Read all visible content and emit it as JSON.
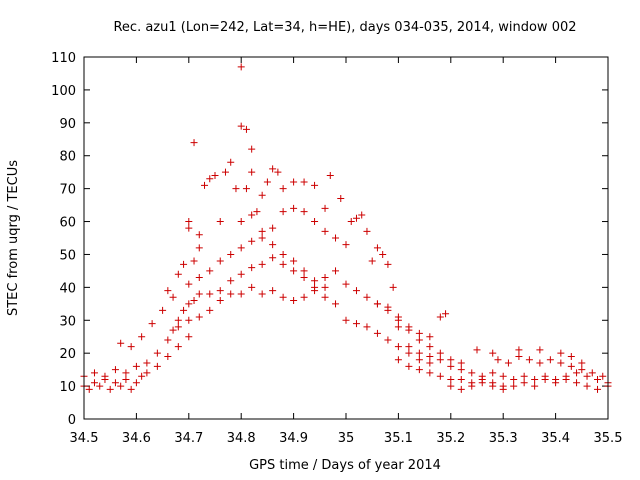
{
  "chart_data": {
    "type": "scatter",
    "title": "Rec. azu1 (Lon=242, Lat=34, h=HE), days 034-035, 2014, window 002",
    "xlabel": "GPS time / Days of year 2014",
    "ylabel": "STEC from uqrg / TECUs",
    "xlim": [
      34.5,
      35.5
    ],
    "ylim": [
      0,
      110
    ],
    "xticks": [
      34.5,
      34.6,
      34.7,
      34.8,
      34.9,
      35,
      35.1,
      35.2,
      35.3,
      35.4,
      35.5
    ],
    "xtick_labels": [
      "34.5",
      "34.6",
      "34.7",
      "34.8",
      "34.9",
      "35",
      "35.1",
      "35.2",
      "35.3",
      "35.4",
      "35.5"
    ],
    "yticks": [
      0,
      10,
      20,
      30,
      40,
      50,
      60,
      70,
      80,
      90,
      100,
      110
    ],
    "ytick_labels": [
      "0",
      "10",
      "20",
      "30",
      "40",
      "50",
      "60",
      "70",
      "80",
      "90",
      "100",
      "110"
    ],
    "marker": "+",
    "color": "#cc0000",
    "series": [
      {
        "name": "STEC",
        "points": [
          [
            34.5,
            10
          ],
          [
            34.51,
            9
          ],
          [
            34.52,
            11
          ],
          [
            34.53,
            10
          ],
          [
            34.54,
            12
          ],
          [
            34.55,
            9
          ],
          [
            34.56,
            11
          ],
          [
            34.57,
            10
          ],
          [
            34.58,
            12
          ],
          [
            34.59,
            9
          ],
          [
            34.6,
            11
          ],
          [
            34.61,
            13
          ],
          [
            34.5,
            13
          ],
          [
            34.52,
            14
          ],
          [
            34.54,
            13
          ],
          [
            34.56,
            15
          ],
          [
            34.58,
            14
          ],
          [
            34.6,
            16
          ],
          [
            34.62,
            17
          ],
          [
            34.57,
            23
          ],
          [
            34.59,
            22
          ],
          [
            34.61,
            25
          ],
          [
            34.63,
            29
          ],
          [
            34.65,
            33
          ],
          [
            34.66,
            39
          ],
          [
            34.62,
            14
          ],
          [
            34.64,
            16
          ],
          [
            34.66,
            19
          ],
          [
            34.68,
            22
          ],
          [
            34.7,
            25
          ],
          [
            34.64,
            20
          ],
          [
            34.66,
            24
          ],
          [
            34.67,
            27
          ],
          [
            34.68,
            30
          ],
          [
            34.69,
            33
          ],
          [
            34.7,
            35
          ],
          [
            34.71,
            36
          ],
          [
            34.72,
            38
          ],
          [
            34.67,
            37
          ],
          [
            34.68,
            44
          ],
          [
            34.69,
            47
          ],
          [
            34.7,
            58
          ],
          [
            34.7,
            60
          ],
          [
            34.71,
            48
          ],
          [
            34.72,
            52
          ],
          [
            34.68,
            28
          ],
          [
            34.7,
            30
          ],
          [
            34.72,
            31
          ],
          [
            34.74,
            33
          ],
          [
            34.76,
            36
          ],
          [
            34.78,
            38
          ],
          [
            34.8,
            38
          ],
          [
            34.71,
            84
          ],
          [
            34.72,
            56
          ],
          [
            34.73,
            71
          ],
          [
            34.74,
            73
          ],
          [
            34.75,
            74
          ],
          [
            34.76,
            60
          ],
          [
            34.77,
            75
          ],
          [
            34.78,
            78
          ],
          [
            34.79,
            70
          ],
          [
            34.8,
            107
          ],
          [
            34.8,
            89
          ],
          [
            34.81,
            88
          ],
          [
            34.81,
            70
          ],
          [
            34.82,
            75
          ],
          [
            34.82,
            82
          ],
          [
            34.83,
            63
          ],
          [
            34.84,
            68
          ],
          [
            34.85,
            72
          ],
          [
            34.86,
            76
          ],
          [
            34.87,
            75
          ],
          [
            34.7,
            41
          ],
          [
            34.72,
            43
          ],
          [
            34.74,
            45
          ],
          [
            34.76,
            48
          ],
          [
            34.78,
            50
          ],
          [
            34.8,
            52
          ],
          [
            34.82,
            54
          ],
          [
            34.84,
            55
          ],
          [
            34.86,
            53
          ],
          [
            34.88,
            50
          ],
          [
            34.9,
            48
          ],
          [
            34.92,
            45
          ],
          [
            34.94,
            42
          ],
          [
            34.96,
            40
          ],
          [
            34.74,
            38
          ],
          [
            34.76,
            39
          ],
          [
            34.78,
            42
          ],
          [
            34.8,
            44
          ],
          [
            34.82,
            46
          ],
          [
            34.84,
            47
          ],
          [
            34.86,
            49
          ],
          [
            34.88,
            47
          ],
          [
            34.9,
            45
          ],
          [
            34.92,
            43
          ],
          [
            34.94,
            39
          ],
          [
            34.96,
            37
          ],
          [
            34.98,
            35
          ],
          [
            34.8,
            60
          ],
          [
            34.82,
            62
          ],
          [
            34.84,
            57
          ],
          [
            34.86,
            58
          ],
          [
            34.88,
            63
          ],
          [
            34.9,
            64
          ],
          [
            34.92,
            63
          ],
          [
            34.94,
            60
          ],
          [
            34.96,
            57
          ],
          [
            34.98,
            55
          ],
          [
            35,
            53
          ],
          [
            34.88,
            70
          ],
          [
            34.9,
            72
          ],
          [
            34.92,
            72
          ],
          [
            34.94,
            71
          ],
          [
            34.96,
            64
          ],
          [
            34.97,
            74
          ],
          [
            34.99,
            67
          ],
          [
            34.82,
            40
          ],
          [
            34.84,
            38
          ],
          [
            34.86,
            39
          ],
          [
            34.88,
            37
          ],
          [
            34.9,
            36
          ],
          [
            34.92,
            37
          ],
          [
            34.94,
            40
          ],
          [
            34.96,
            43
          ],
          [
            34.98,
            45
          ],
          [
            35,
            41
          ],
          [
            35.01,
            60
          ],
          [
            35.02,
            61
          ],
          [
            35.03,
            62
          ],
          [
            35.04,
            57
          ],
          [
            35.05,
            48
          ],
          [
            35.06,
            52
          ],
          [
            35.07,
            50
          ],
          [
            35.08,
            47
          ],
          [
            35.09,
            40
          ],
          [
            35,
            30
          ],
          [
            35.02,
            29
          ],
          [
            35.04,
            28
          ],
          [
            35.06,
            26
          ],
          [
            35.08,
            24
          ],
          [
            35.1,
            22
          ],
          [
            35.12,
            20
          ],
          [
            35.14,
            18
          ],
          [
            35.16,
            17
          ],
          [
            35.02,
            39
          ],
          [
            35.04,
            37
          ],
          [
            35.06,
            35
          ],
          [
            35.08,
            33
          ],
          [
            35.1,
            31
          ],
          [
            35.12,
            28
          ],
          [
            35.14,
            26
          ],
          [
            35.16,
            25
          ],
          [
            35.18,
            31
          ],
          [
            35.19,
            32
          ],
          [
            35.1,
            18
          ],
          [
            35.12,
            16
          ],
          [
            35.14,
            15
          ],
          [
            35.16,
            14
          ],
          [
            35.18,
            13
          ],
          [
            35.2,
            12
          ],
          [
            35.22,
            12
          ],
          [
            35.24,
            11
          ],
          [
            35.26,
            12
          ],
          [
            35.28,
            11
          ],
          [
            35.3,
            10
          ],
          [
            35.12,
            22
          ],
          [
            35.14,
            20
          ],
          [
            35.16,
            19
          ],
          [
            35.18,
            18
          ],
          [
            35.2,
            16
          ],
          [
            35.22,
            15
          ],
          [
            35.24,
            14
          ],
          [
            35.26,
            13
          ],
          [
            35.2,
            10
          ],
          [
            35.22,
            9
          ],
          [
            35.24,
            10
          ],
          [
            35.26,
            11
          ],
          [
            35.28,
            10
          ],
          [
            35.3,
            9
          ],
          [
            35.32,
            10
          ],
          [
            35.34,
            11
          ],
          [
            35.36,
            10
          ],
          [
            35.38,
            12
          ],
          [
            35.4,
            11
          ],
          [
            35.42,
            12
          ],
          [
            35.44,
            11
          ],
          [
            35.46,
            10
          ],
          [
            35.48,
            9
          ],
          [
            35.5,
            10
          ],
          [
            35.28,
            20
          ],
          [
            35.31,
            17
          ],
          [
            35.33,
            19
          ],
          [
            35.35,
            18
          ],
          [
            35.37,
            17
          ],
          [
            35.39,
            18
          ],
          [
            35.41,
            17
          ],
          [
            35.43,
            16
          ],
          [
            35.45,
            15
          ],
          [
            35.47,
            14
          ],
          [
            35.49,
            13
          ],
          [
            35.28,
            14
          ],
          [
            35.3,
            13
          ],
          [
            35.32,
            12
          ],
          [
            35.34,
            13
          ],
          [
            35.36,
            12
          ],
          [
            35.38,
            13
          ],
          [
            35.4,
            12
          ],
          [
            35.42,
            13
          ],
          [
            35.44,
            14
          ],
          [
            35.46,
            13
          ],
          [
            35.48,
            12
          ],
          [
            35.5,
            11
          ],
          [
            35.25,
            21
          ],
          [
            35.29,
            18
          ],
          [
            35.33,
            21
          ],
          [
            35.37,
            21
          ],
          [
            35.41,
            20
          ],
          [
            35.43,
            19
          ],
          [
            35.45,
            17
          ],
          [
            35.06,
            35
          ],
          [
            35.08,
            34
          ],
          [
            35.1,
            30
          ],
          [
            35.1,
            28
          ],
          [
            35.12,
            27
          ],
          [
            35.14,
            24
          ],
          [
            35.16,
            22
          ],
          [
            35.18,
            20
          ],
          [
            35.2,
            18
          ],
          [
            35.22,
            17
          ]
        ]
      }
    ]
  }
}
